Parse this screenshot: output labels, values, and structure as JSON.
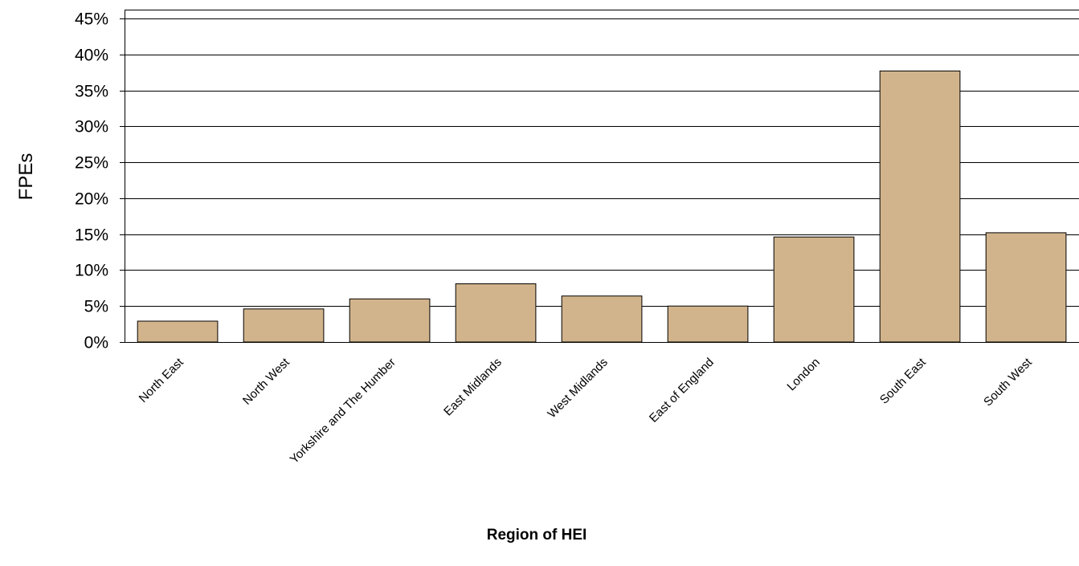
{
  "chart_data": {
    "type": "bar",
    "title": "",
    "xlabel": "Region of HEI",
    "ylabel": "FPEs",
    "categories": [
      "North East",
      "North West",
      "Yorkshire and The Humber",
      "East Midlands",
      "West Midlands",
      "East of England",
      "London",
      "South East",
      "South West"
    ],
    "values": [
      2.9,
      4.6,
      6.0,
      8.1,
      6.4,
      5.0,
      14.6,
      37.7,
      15.2
    ],
    "ylim": [
      0,
      45
    ],
    "yticks": [
      0,
      5,
      10,
      15,
      20,
      25,
      30,
      35,
      40,
      45
    ],
    "ytick_labels": [
      "0%",
      "5%",
      "10%",
      "15%",
      "20%",
      "25%",
      "30%",
      "35%",
      "40%",
      "45%"
    ],
    "grid": true,
    "legend": "none",
    "bar_color": "#d2b48c",
    "bar_edge_color": "#000000"
  }
}
